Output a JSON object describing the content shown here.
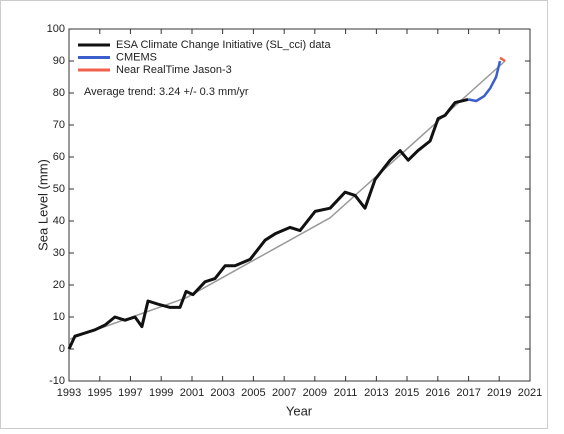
{
  "chart_data": {
    "type": "line",
    "xlabel": "Year",
    "ylabel": "Sea Level (mm)",
    "annotation": "Average trend: 3.24 +/- 0.3 mm/yr",
    "xlim": [
      1993,
      2021
    ],
    "ylim": [
      -10,
      100
    ],
    "xticks": [
      {
        "value": 1993,
        "label": "1993"
      },
      {
        "value": 1994.87,
        "label": "1995"
      },
      {
        "value": 1996.73,
        "label": "1997"
      },
      {
        "value": 1998.6,
        "label": "1999"
      },
      {
        "value": 2000.47,
        "label": "2001"
      },
      {
        "value": 2002.33,
        "label": "2003"
      },
      {
        "value": 2004.2,
        "label": "2005"
      },
      {
        "value": 2006.07,
        "label": "2007"
      },
      {
        "value": 2007.93,
        "label": "2009"
      },
      {
        "value": 2009.8,
        "label": "2011"
      },
      {
        "value": 2011.67,
        "label": "2013"
      },
      {
        "value": 2013.53,
        "label": "2015"
      },
      {
        "value": 2015.4,
        "label": "2016"
      },
      {
        "value": 2017.27,
        "label": "2017"
      },
      {
        "value": 2019.13,
        "label": "2019"
      },
      {
        "value": 2021,
        "label": "2021"
      }
    ],
    "yticks": [
      -10,
      0,
      10,
      20,
      30,
      40,
      50,
      60,
      70,
      80,
      90,
      100
    ],
    "series": [
      {
        "name": "ESA Climate Change Initiative (SL_cci) data",
        "color": "#111111",
        "x": [
          1993,
          1993.36,
          1993.97,
          1994.58,
          1995.19,
          1995.79,
          1996.4,
          1997.01,
          1997.43,
          1997.8,
          1998.41,
          1999.14,
          1999.74,
          2000.11,
          2000.53,
          2001.26,
          2001.87,
          2002.48,
          2003.08,
          2004,
          2004.91,
          2005.52,
          2006.43,
          2007.03,
          2007.95,
          2008.86,
          2009.77,
          2010.38,
          2010.98,
          2011.59,
          2012.5,
          2013.11,
          2013.6,
          2014.2,
          2014.93,
          2015.42,
          2015.84,
          2016.45,
          2017.24
        ],
        "values": [
          0,
          4,
          5,
          6,
          7.5,
          10,
          9,
          10,
          7,
          15,
          14,
          13,
          13,
          18,
          17,
          21,
          22,
          26,
          26,
          28,
          34,
          36,
          38,
          37,
          43,
          44,
          49,
          48,
          44,
          53,
          59,
          62,
          59,
          62,
          65,
          72,
          73,
          77,
          78
        ]
      },
      {
        "name": "CMEMS",
        "color": "#3a5fcd",
        "x": [
          2017.24,
          2017.73,
          2018.21,
          2018.58,
          2018.94,
          2019.18
        ],
        "values": [
          78,
          77.5,
          79,
          81.5,
          85,
          90
        ]
      },
      {
        "name": "Near RealTime Jason-3",
        "color": "#f0604a",
        "x": [
          2019.18,
          2019.49
        ],
        "values": [
          91,
          90
        ]
      }
    ],
    "trend": {
      "color": "#999999",
      "x": [
        1993,
        2000.11,
        2008.86,
        2019.49
      ],
      "values": [
        3,
        16,
        41,
        90
      ]
    }
  }
}
